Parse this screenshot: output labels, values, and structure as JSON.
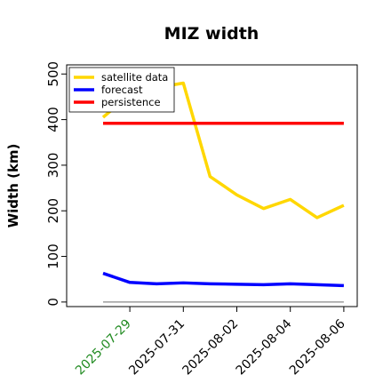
{
  "chart_data": {
    "type": "line",
    "title": "MIZ width",
    "ylabel": "Width (km)",
    "xlabel": "",
    "ylim": [
      -10,
      520
    ],
    "yticks": [
      0,
      100,
      200,
      300,
      400,
      500
    ],
    "x_days": [
      0,
      1,
      2,
      3,
      4,
      5,
      6,
      7,
      8,
      9
    ],
    "xticks": [
      {
        "day": 1,
        "label": "2025-07-29",
        "color": "#228B22"
      },
      {
        "day": 3,
        "label": "2025-07-31",
        "color": "#000000"
      },
      {
        "day": 5,
        "label": "2025-08-02",
        "color": "#000000"
      },
      {
        "day": 7,
        "label": "2025-08-04",
        "color": "#000000"
      },
      {
        "day": 9,
        "label": "2025-08-06",
        "color": "#000000"
      }
    ],
    "legend_position": "top-left",
    "grid": false,
    "series": [
      {
        "name": "satellite data",
        "color": "#FFD700",
        "values": [
          405,
          455,
          470,
          480,
          275,
          235,
          205,
          225,
          185,
          212
        ]
      },
      {
        "name": "forecast",
        "color": "#0000FF",
        "values": [
          63,
          43,
          40,
          42,
          40,
          39,
          38,
          40,
          38,
          36
        ]
      },
      {
        "name": "persistence",
        "color": "#FF0000",
        "values": [
          392,
          392,
          392,
          392,
          392,
          392,
          392,
          392,
          392,
          392
        ]
      }
    ],
    "reference_line": {
      "value": 0,
      "color": "#888888"
    }
  }
}
